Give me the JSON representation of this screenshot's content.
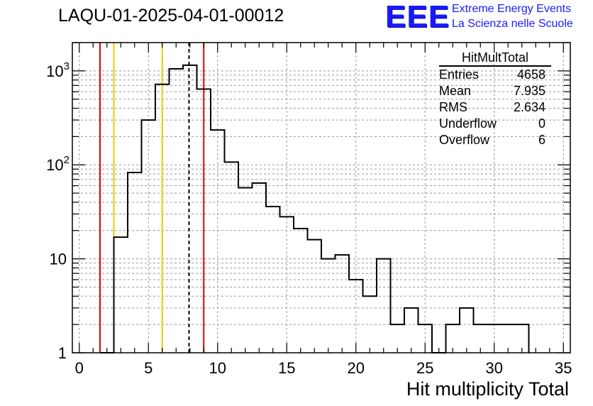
{
  "chart_data": {
    "type": "histogram",
    "title": "LAQU-01-2025-04-01-00012",
    "xlabel": "Hit multiplicity Total",
    "ylabel": "",
    "xlim": [
      -0.5,
      35.5
    ],
    "ylim": [
      1,
      2000
    ],
    "yscale": "log",
    "grid": true,
    "x_ticks": [
      "0",
      "5",
      "10",
      "15",
      "20",
      "25",
      "30",
      "35"
    ],
    "y_ticks": [
      "1",
      "10",
      "10^2",
      "10^3"
    ],
    "bin_width": 1,
    "bins": [
      {
        "x": 2,
        "value": 0
      },
      {
        "x": 3,
        "value": 17
      },
      {
        "x": 4,
        "value": 83
      },
      {
        "x": 5,
        "value": 300
      },
      {
        "x": 6,
        "value": 720
      },
      {
        "x": 7,
        "value": 1050
      },
      {
        "x": 8,
        "value": 1150
      },
      {
        "x": 9,
        "value": 640
      },
      {
        "x": 10,
        "value": 235
      },
      {
        "x": 11,
        "value": 107
      },
      {
        "x": 12,
        "value": 57
      },
      {
        "x": 13,
        "value": 64
      },
      {
        "x": 14,
        "value": 36
      },
      {
        "x": 15,
        "value": 28
      },
      {
        "x": 16,
        "value": 21
      },
      {
        "x": 17,
        "value": 16
      },
      {
        "x": 18,
        "value": 10
      },
      {
        "x": 19,
        "value": 11
      },
      {
        "x": 20,
        "value": 6
      },
      {
        "x": 21,
        "value": 4
      },
      {
        "x": 22,
        "value": 10
      },
      {
        "x": 23,
        "value": 2
      },
      {
        "x": 24,
        "value": 3
      },
      {
        "x": 25,
        "value": 2
      },
      {
        "x": 26,
        "value": 0
      },
      {
        "x": 27,
        "value": 2
      },
      {
        "x": 28,
        "value": 3
      },
      {
        "x": 29,
        "value": 2
      },
      {
        "x": 30,
        "value": 2
      },
      {
        "x": 31,
        "value": 2
      },
      {
        "x": 32,
        "value": 2
      }
    ],
    "vertical_lines": [
      {
        "x": 1.5,
        "color": "#e00000",
        "style": "solid"
      },
      {
        "x": 2.5,
        "color": "#f0c800",
        "style": "solid"
      },
      {
        "x": 6.0,
        "color": "#f0c800",
        "style": "solid"
      },
      {
        "x": 7.935,
        "color": "#000000",
        "style": "dashed"
      },
      {
        "x": 9.0,
        "color": "#e00000",
        "style": "solid"
      }
    ],
    "stats_box": {
      "title": "HitMultTotal",
      "rows": [
        {
          "label": "Entries",
          "value": "4658"
        },
        {
          "label": "Mean",
          "value": "7.935"
        },
        {
          "label": "RMS",
          "value": "2.634"
        },
        {
          "label": "Underflow",
          "value": "0"
        },
        {
          "label": "Overflow",
          "value": "6"
        }
      ]
    }
  },
  "logo": {
    "text": "EEE",
    "line1": "Extreme Energy Events",
    "line2": "La Scienza nelle Scuole",
    "color": "#1a1aff"
  }
}
